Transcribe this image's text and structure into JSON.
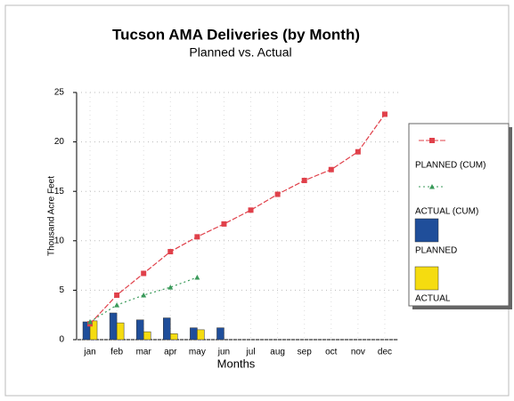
{
  "chart_data": {
    "type": "bar-line",
    "title": "Tucson AMA Deliveries (by Month)",
    "subtitle": "Planned vs. Actual",
    "x_label": "Months",
    "y_label": "Thousand Acre Feet",
    "categories": [
      "jan",
      "feb",
      "mar",
      "apr",
      "may",
      "jun",
      "jul",
      "aug",
      "sep",
      "oct",
      "nov",
      "dec"
    ],
    "series": [
      {
        "name": "PLANNED (CUM)",
        "kind": "line",
        "color": "#e0404a",
        "values": [
          1.6,
          4.5,
          6.7,
          8.9,
          10.4,
          11.7,
          13.1,
          14.7,
          16.1,
          17.2,
          19.0,
          22.8
        ]
      },
      {
        "name": "ACTUAL (CUM)",
        "kind": "line",
        "color": "#3a9a5a",
        "values": [
          1.8,
          3.5,
          4.5,
          5.3,
          6.3,
          null,
          null,
          null,
          null,
          null,
          null,
          null
        ]
      },
      {
        "name": "PLANNED",
        "kind": "bar",
        "color": "#1f4e9a",
        "values": [
          1.8,
          2.7,
          2.0,
          2.2,
          1.2,
          1.2,
          null,
          null,
          null,
          null,
          null,
          null
        ]
      },
      {
        "name": "ACTUAL",
        "kind": "bar",
        "color": "#f5dc10",
        "values": [
          1.9,
          1.7,
          0.8,
          0.6,
          1.0,
          null,
          null,
          null,
          null,
          null,
          null,
          null
        ]
      }
    ],
    "ylim": [
      0,
      25
    ],
    "yticks": [
      0,
      5,
      10,
      15,
      20,
      25
    ],
    "grid": true,
    "legend": "right"
  }
}
